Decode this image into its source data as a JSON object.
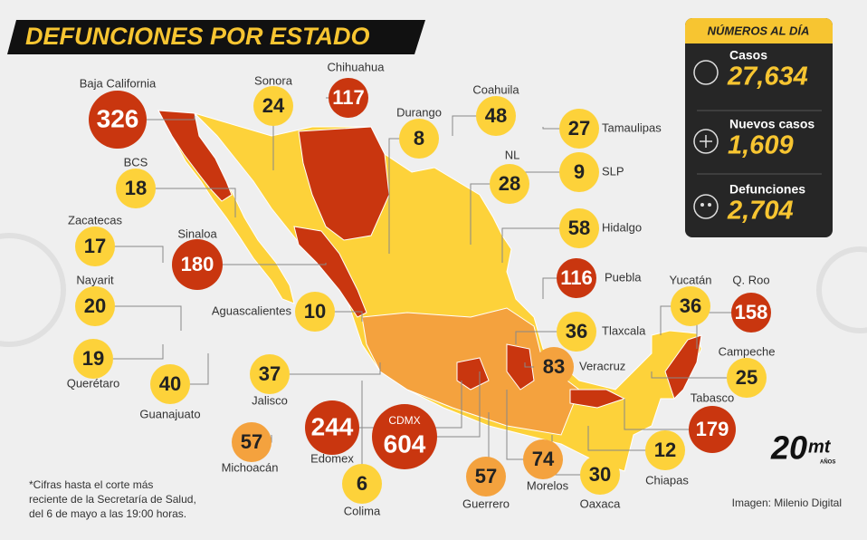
{
  "header": {
    "title": "DEFUNCIONES POR ESTADO"
  },
  "summary": {
    "title": "NÚMEROS AL DÍA",
    "items": [
      {
        "label": "Casos",
        "value": "27,634"
      },
      {
        "label": "Nuevos casos",
        "value": "1,609"
      },
      {
        "label": "Defunciones",
        "value": "2,704"
      }
    ]
  },
  "states": [
    {
      "name": "Baja California",
      "value": 326,
      "color": "#c9360f"
    },
    {
      "name": "Sonora",
      "value": 24,
      "color": "#fdd23a"
    },
    {
      "name": "Chihuahua",
      "value": 117,
      "color": "#c9360f"
    },
    {
      "name": "Coahuila",
      "value": 48,
      "color": "#fdd23a"
    },
    {
      "name": "Durango",
      "value": 8,
      "color": "#fdd23a"
    },
    {
      "name": "Tamaulipas",
      "value": 27,
      "color": "#fdd23a"
    },
    {
      "name": "NL",
      "value": 28,
      "color": "#fdd23a"
    },
    {
      "name": "SLP",
      "value": 9,
      "color": "#fdd23a"
    },
    {
      "name": "Hidalgo",
      "value": 58,
      "color": "#fdd23a"
    },
    {
      "name": "BCS",
      "value": 18,
      "color": "#fdd23a"
    },
    {
      "name": "Zacatecas",
      "value": 17,
      "color": "#fdd23a"
    },
    {
      "name": "Sinaloa",
      "value": 180,
      "color": "#c9360f"
    },
    {
      "name": "Puebla",
      "value": 116,
      "color": "#c9360f"
    },
    {
      "name": "Nayarit",
      "value": 20,
      "color": "#fdd23a"
    },
    {
      "name": "Aguascalientes",
      "value": 10,
      "color": "#fdd23a"
    },
    {
      "name": "Yucatán",
      "value": 36,
      "color": "#fdd23a"
    },
    {
      "name": "Q. Roo",
      "value": 158,
      "color": "#c9360f"
    },
    {
      "name": "Tlaxcala",
      "value": 36,
      "color": "#fdd23a"
    },
    {
      "name": "Querétaro",
      "value": 19,
      "color": "#fdd23a"
    },
    {
      "name": "Veracruz",
      "value": 83,
      "color": "#f4a23e"
    },
    {
      "name": "Campeche",
      "value": 25,
      "color": "#fdd23a"
    },
    {
      "name": "Guanajuato",
      "value": 40,
      "color": "#fdd23a"
    },
    {
      "name": "Jalisco",
      "value": 37,
      "color": "#fdd23a"
    },
    {
      "name": "Tabasco",
      "value": 179,
      "color": "#c9360f"
    },
    {
      "name": "CDMX",
      "value": 604,
      "color": "#c9360f"
    },
    {
      "name": "Edomex",
      "value": 244,
      "color": "#c9360f"
    },
    {
      "name": "Michoacán",
      "value": 57,
      "color": "#f4a23e"
    },
    {
      "name": "Chiapas",
      "value": 12,
      "color": "#fdd23a"
    },
    {
      "name": "Morelos",
      "value": 74,
      "color": "#f4a23e"
    },
    {
      "name": "Oaxaca",
      "value": 30,
      "color": "#fdd23a"
    },
    {
      "name": "Guerrero",
      "value": 57,
      "color": "#f4a23e"
    },
    {
      "name": "Colima",
      "value": 6,
      "color": "#fdd23a"
    }
  ],
  "footnote": [
    "*Cifras hasta el corte más",
    "reciente de la Secretaría de Salud,",
    "del 6 de mayo a las 19:00 horas."
  ],
  "credit": "Imagen: Milenio Digital",
  "logo": {
    "number": "20",
    "brand": "mt",
    "suffix": "AÑOS"
  }
}
